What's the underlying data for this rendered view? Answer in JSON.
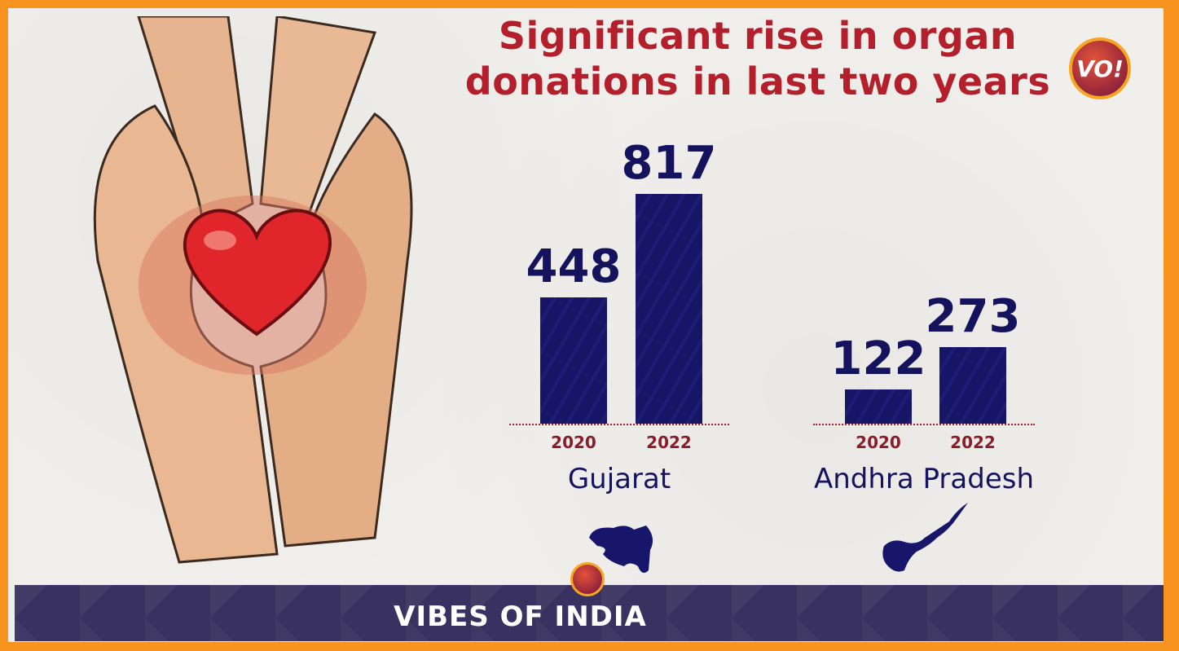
{
  "title_line1": "Significant rise in organ",
  "title_line2": "donations in last two years",
  "logo_text": "VO!",
  "footer_brand": "VIBES OF INDIA",
  "colors": {
    "border": "#f7931e",
    "title": "#b41f2c",
    "bar": "#171566",
    "footer": "#39315f"
  },
  "chart_data": [
    {
      "type": "bar",
      "title": "Gujarat",
      "categories": [
        "2020",
        "2022"
      ],
      "values": [
        448,
        817
      ],
      "grid": false
    },
    {
      "type": "bar",
      "title": "Andhra Pradesh",
      "categories": [
        "2020",
        "2022"
      ],
      "values": [
        122,
        273
      ],
      "grid": false
    }
  ]
}
